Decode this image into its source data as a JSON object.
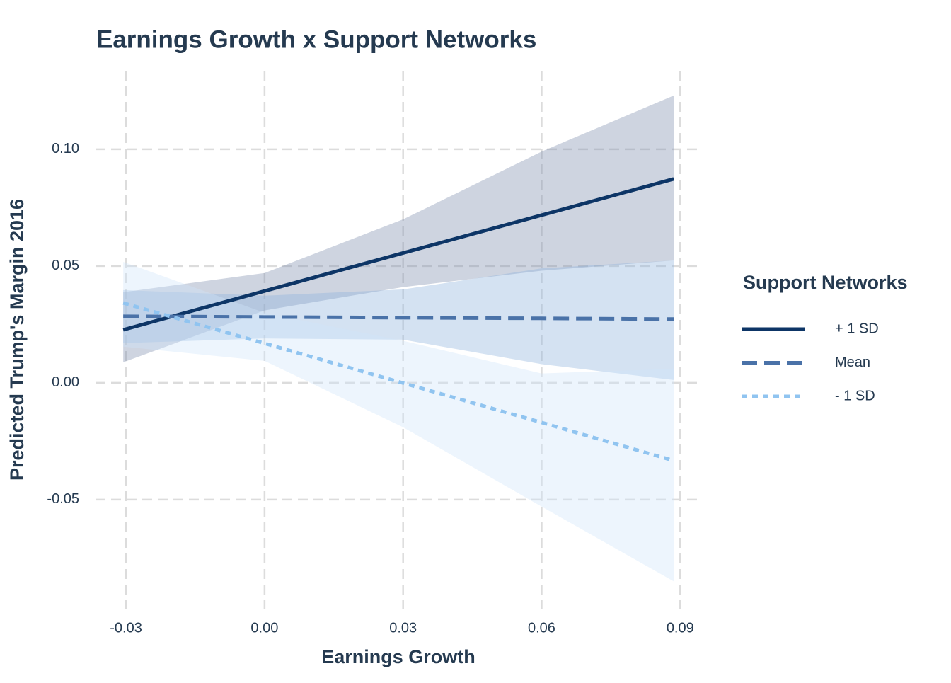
{
  "chart_data": {
    "type": "line",
    "title": "Earnings Growth x Support Networks",
    "x_label": "Earnings Growth",
    "y_label": "Predicted Trump's Margin 2016",
    "legend_title": "Support Networks",
    "legend": "right",
    "grid": true,
    "x": [
      -0.0306,
      0,
      0.03,
      0.06,
      0.0886
    ],
    "xlim": [
      -0.0366,
      0.0944
    ],
    "ylim": [
      -0.0967,
      0.1336
    ],
    "xticks": [
      -0.03,
      {
        "value": 0,
        "label": "0.00"
      },
      0.03,
      0.06,
      0.09
    ],
    "yticks": [
      -0.05,
      {
        "value": 0,
        "label": "0.00"
      },
      0.05,
      {
        "value": 0.1,
        "label": "0.10"
      }
    ],
    "series": [
      {
        "name": "+ 1 SD",
        "color": "#0d3566",
        "band_color": "#7f8fae",
        "dash": "solid",
        "values": [
          0.0227,
          0.0393,
          0.0556,
          0.0718,
          0.0873
        ],
        "lower": [
          0.0088,
          0.031,
          0.041,
          0.048,
          0.0524
        ],
        "upper": [
          0.0388,
          0.047,
          0.07,
          0.099,
          0.123
        ]
      },
      {
        "name": "Mean",
        "color": "#4a72a8",
        "band_color": "#8fb2dc",
        "dash": "dashed",
        "values": [
          0.0285,
          0.0282,
          0.0279,
          0.0276,
          0.0273
        ],
        "lower": [
          0.017,
          0.019,
          0.0185,
          0.008,
          0.0012
        ],
        "upper": [
          0.0397,
          0.0373,
          0.04,
          0.049,
          0.0524
        ]
      },
      {
        "name": "- 1 SD",
        "color": "#90c4f0",
        "band_color": "#cfe6fa",
        "dash": "dotted",
        "values": [
          0.0342,
          0.0169,
          -0.0001,
          -0.017,
          -0.0333
        ],
        "lower": [
          0.0155,
          0.0094,
          -0.019,
          -0.053,
          -0.085
        ],
        "upper": [
          0.0518,
          0.03,
          0.018,
          0.004,
          0.006
        ]
      }
    ]
  }
}
